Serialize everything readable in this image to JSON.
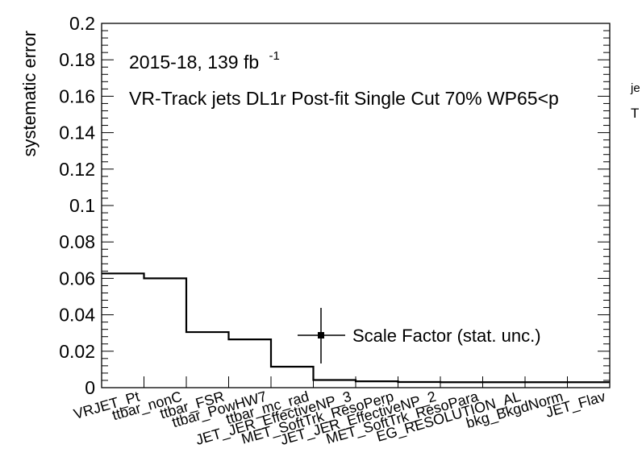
{
  "chart_data": {
    "type": "line",
    "ylabel": "systematic error",
    "ylim": [
      0,
      0.2
    ],
    "y_ticks": [
      "0",
      "0.02",
      "0.04",
      "0.06",
      "0.08",
      "0.1",
      "0.12",
      "0.14",
      "0.16",
      "0.18",
      "0.2"
    ],
    "grid": false,
    "annotations": {
      "lumi_main": "2015-18, 139 fb",
      "lumi_sup": "-1",
      "desc_main": "VR-Track jets DL1r Post-fit Single Cut 70% WP65<p",
      "desc_sup": "je",
      "desc_sub": "T"
    },
    "categories": [
      "VRJET_Pt",
      "ttbar_nonC",
      "ttbar_FSR",
      "ttbar_PowHW7",
      "ttbar_mc_rad",
      "JET_JER_EffectiveNP_3",
      "MET_SoftTrk_ResoPerp",
      "JET_JER_EffectiveNP_2",
      "MET_SoftTrk_ResoPara",
      "EG_RESOLUTION_AL",
      "bkg_BkgdNorm",
      "JET_Flav"
    ],
    "series": [
      {
        "values": [
          0.0627,
          0.06,
          0.0305,
          0.0265,
          0.0115,
          0.0042,
          0.0035,
          0.0031,
          0.003,
          0.003,
          0.003,
          0.003
        ]
      }
    ],
    "legend": {
      "label": "Scale Factor (stat. unc.)",
      "position": "middle-right"
    },
    "colors": {
      "line": "#000000",
      "axis": "#000000"
    }
  }
}
